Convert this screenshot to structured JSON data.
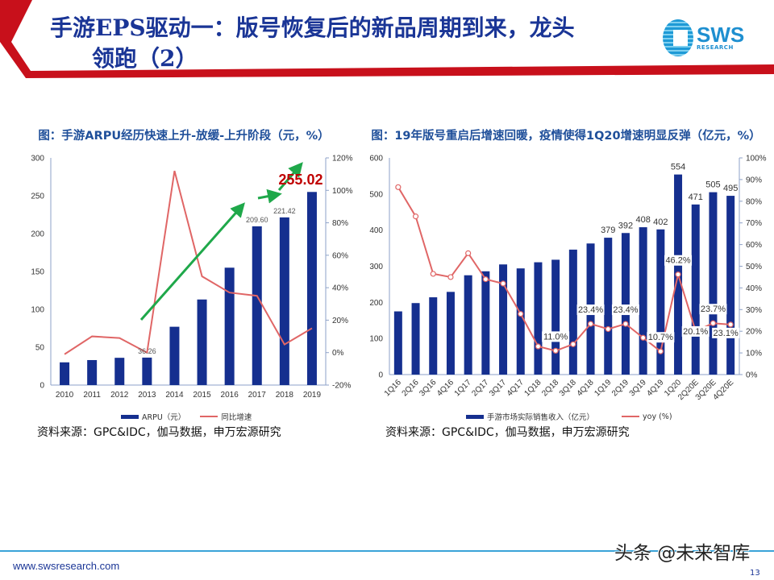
{
  "header": {
    "title_line1": "手游EPS驱动一：版号恢复后的新品周期到来，龙头",
    "title_line2": "领跑（2）",
    "logo_text": "SWS",
    "logo_subtext": "RESEARCH"
  },
  "colors": {
    "bar": "#152f8f",
    "line": "#e06666",
    "arrow": "#1fa84a",
    "accent_red": "#c00000",
    "title_blue": "#1a3596"
  },
  "chart_data": [
    {
      "type": "bar+line",
      "title": "图：手游ARPU经历快速上升-放缓-上升阶段（元，%）",
      "categories": [
        "2010",
        "2011",
        "2012",
        "2013",
        "2014",
        "2015",
        "2016",
        "2017",
        "2018",
        "2019"
      ],
      "series": [
        {
          "name": "ARPU（元）",
          "type": "bar",
          "axis": "left",
          "values": [
            30,
            33,
            36,
            36.26,
            77,
            113,
            155,
            209.6,
            221.42,
            255.02
          ]
        },
        {
          "name": "同比增速",
          "type": "line",
          "axis": "right",
          "values": [
            -1,
            10,
            9,
            0,
            112,
            47,
            37,
            35,
            5,
            15
          ]
        }
      ],
      "data_labels": [
        {
          "category": "2013",
          "text": "36.26"
        },
        {
          "category": "2017",
          "text": "209.60"
        },
        {
          "category": "2018",
          "text": "221.42"
        },
        {
          "category": "2019",
          "text": "255.02",
          "highlight": true
        }
      ],
      "y_left": {
        "lim": [
          0,
          300
        ],
        "ticks": [
          "0",
          "50",
          "100",
          "150",
          "200",
          "250",
          "300"
        ]
      },
      "y_right": {
        "lim": [
          -20,
          120
        ],
        "ticks": [
          "-20%",
          "0%",
          "20%",
          "40%",
          "60%",
          "80%",
          "100%",
          "120%"
        ]
      },
      "legend": "bottom",
      "annotations": "green trend arrows",
      "source": "资料来源：GPC&IDC，伽马数据，申万宏源研究"
    },
    {
      "type": "bar+line",
      "title": "图：19年版号重启后增速回暖，疫情使得1Q20增速明显反弹（亿元，%）",
      "categories": [
        "1Q16",
        "2Q16",
        "3Q16",
        "4Q16",
        "1Q17",
        "2Q17",
        "3Q17",
        "4Q17",
        "1Q18",
        "2Q18",
        "3Q18",
        "4Q18",
        "1Q19",
        "2Q19",
        "3Q19",
        "4Q19",
        "1Q20",
        "2Q20E",
        "3Q20E",
        "4Q20E"
      ],
      "series": [
        {
          "name": "手游市场实际销售收入（亿元）",
          "type": "bar",
          "axis": "left",
          "values": [
            175,
            198,
            214,
            229,
            275,
            286,
            305,
            294,
            311,
            318,
            346,
            363,
            379,
            392,
            408,
            402,
            554,
            471,
            505,
            495
          ]
        },
        {
          "name": "yoy (%)",
          "type": "line",
          "axis": "right",
          "values": [
            86.5,
            73,
            46.5,
            45,
            56,
            44,
            42,
            28,
            13,
            11.0,
            14,
            23.4,
            21,
            23.4,
            17,
            10.7,
            46.2,
            20.1,
            23.7,
            23.1
          ]
        }
      ],
      "bar_labels": [
        {
          "category": "1Q19",
          "text": "379"
        },
        {
          "category": "2Q19",
          "text": "392"
        },
        {
          "category": "3Q19",
          "text": "408"
        },
        {
          "category": "4Q19",
          "text": "402"
        },
        {
          "category": "1Q20",
          "text": "554"
        },
        {
          "category": "2Q20E",
          "text": "471"
        },
        {
          "category": "3Q20E",
          "text": "505"
        },
        {
          "category": "4Q20E",
          "text": "495"
        }
      ],
      "line_labels": [
        {
          "category": "2Q18",
          "text": "11.0%"
        },
        {
          "category": "4Q18",
          "text": "23.4%"
        },
        {
          "category": "2Q19",
          "text": "23.4%"
        },
        {
          "category": "4Q19",
          "text": "10.7%"
        },
        {
          "category": "1Q20",
          "text": "46.2%"
        },
        {
          "category": "2Q20E",
          "text": "20.1%"
        },
        {
          "category": "3Q20E",
          "text": "23.7%"
        },
        {
          "category": "4Q20E",
          "text": "23.1%"
        }
      ],
      "y_left": {
        "lim": [
          0,
          600
        ],
        "ticks": [
          "0",
          "100",
          "200",
          "300",
          "400",
          "500",
          "600"
        ]
      },
      "y_right": {
        "lim": [
          0,
          100
        ],
        "ticks": [
          "0%",
          "10%",
          "20%",
          "30%",
          "40%",
          "50%",
          "60%",
          "70%",
          "80%",
          "90%",
          "100%"
        ]
      },
      "legend": "bottom",
      "source": "资料来源：GPC&IDC，伽马数据，申万宏源研究"
    }
  ],
  "footer": {
    "url": "www.swsresearch.com",
    "page_number": "13",
    "watermark": "头条 @未来智库"
  }
}
